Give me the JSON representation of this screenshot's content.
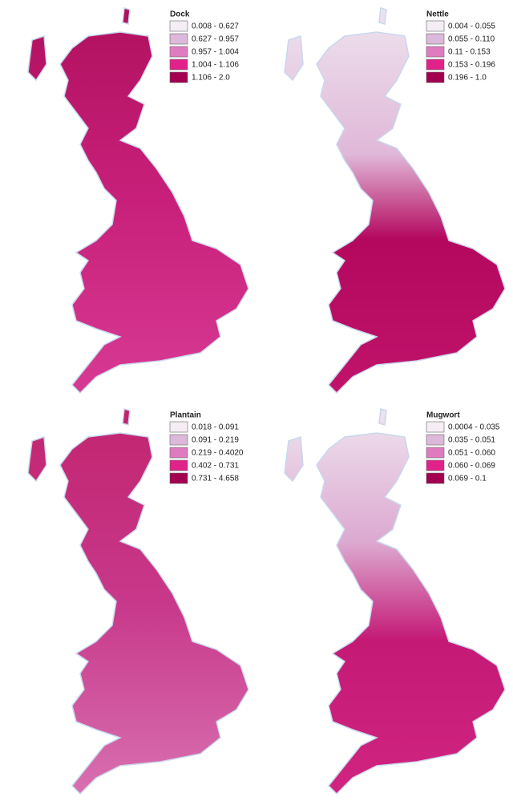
{
  "panels": [
    {
      "title": "Dock",
      "legend": [
        {
          "label": "0.008 - 0.627",
          "color": "#f4eef4"
        },
        {
          "label": "0.627 - 0.957",
          "color": "#dcb8da"
        },
        {
          "label": "0.957 - 1.004",
          "color": "#df7cc0"
        },
        {
          "label": "1.004 - 1.106",
          "color": "#e0228a"
        },
        {
          "label": "1.106 - 2.0",
          "color": "#a3004f"
        }
      ]
    },
    {
      "title": "Nettle",
      "legend": [
        {
          "label": "0.004 - 0.055",
          "color": "#f4eef4"
        },
        {
          "label": "0.055 - 0.110",
          "color": "#dcb8da"
        },
        {
          "label": "0.11 - 0.153",
          "color": "#df7cc0"
        },
        {
          "label": "0.153 - 0.196",
          "color": "#e0228a"
        },
        {
          "label": "0.196 - 1.0",
          "color": "#a3004f"
        }
      ]
    },
    {
      "title": "Plantain",
      "legend": [
        {
          "label": "0.018 - 0.091",
          "color": "#f4eef4"
        },
        {
          "label": "0.091 - 0.219",
          "color": "#dcb8da"
        },
        {
          "label": "0.219 - 0.4020",
          "color": "#df7cc0"
        },
        {
          "label": "0.402 - 0.731",
          "color": "#e0228a"
        },
        {
          "label": "0.731 - 4.658",
          "color": "#a3004f"
        }
      ]
    },
    {
      "title": "Mugwort",
      "legend": [
        {
          "label": "0.0004 - 0.035",
          "color": "#f4eef4"
        },
        {
          "label": "0.035 - 0.051",
          "color": "#dcb8da"
        },
        {
          "label": "0.051 - 0.060",
          "color": "#df7cc0"
        },
        {
          "label": "0.060 - 0.069",
          "color": "#e0228a"
        },
        {
          "label": "0.069 - 0.1",
          "color": "#a3004f"
        }
      ]
    }
  ]
}
